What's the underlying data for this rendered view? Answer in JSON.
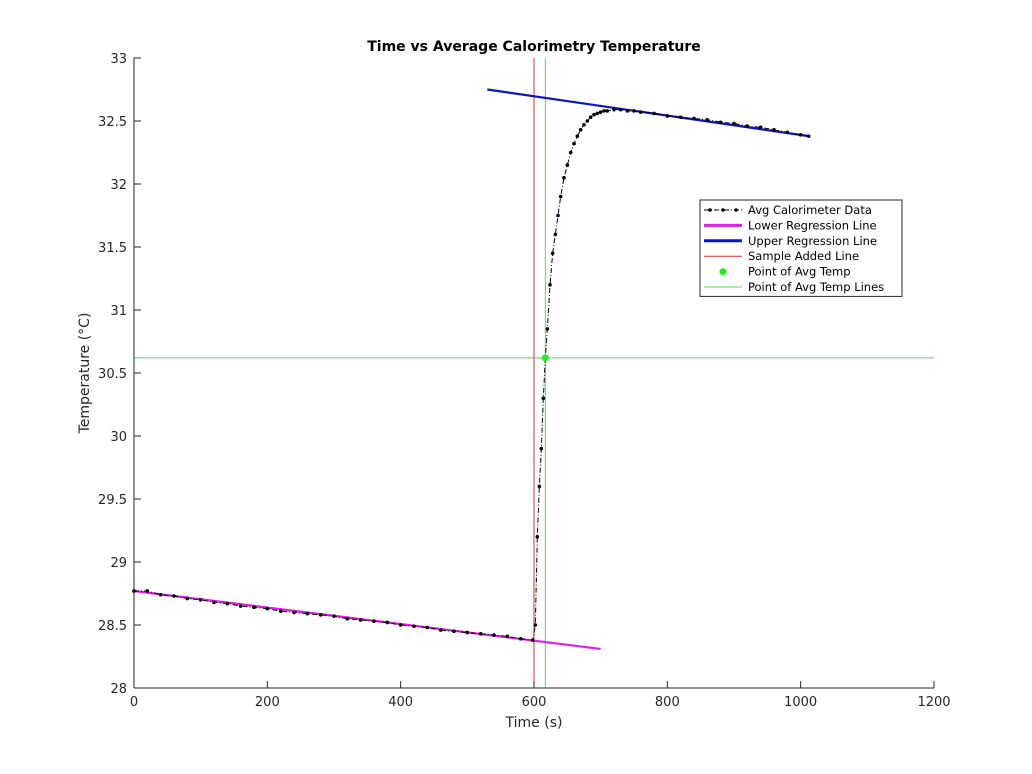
{
  "chart_data": {
    "type": "line",
    "title": "Time vs Average Calorimetry Temperature",
    "xlabel": "Time (s)",
    "ylabel": "Temperature (°C)",
    "xlim": [
      0,
      1200
    ],
    "ylim": [
      28,
      33
    ],
    "xticks": [
      0,
      200,
      400,
      600,
      800,
      1000,
      1200
    ],
    "yticks": [
      28,
      28.5,
      29,
      29.5,
      30,
      30.5,
      31,
      31.5,
      32,
      32.5,
      33
    ],
    "grid": false,
    "legend_position": "upper-right",
    "series": [
      {
        "name": "Avg Calorimeter Data",
        "style": "dash-dot-with-dots",
        "color": "#000000",
        "x": [
          0,
          20,
          40,
          60,
          80,
          100,
          120,
          140,
          160,
          180,
          200,
          220,
          240,
          260,
          280,
          300,
          320,
          340,
          360,
          380,
          400,
          420,
          440,
          460,
          480,
          500,
          520,
          540,
          560,
          580,
          598,
          602,
          605,
          608,
          611,
          614,
          617,
          620,
          624,
          628,
          632,
          636,
          640,
          645,
          650,
          655,
          660,
          665,
          670,
          675,
          680,
          685,
          690,
          695,
          700,
          705,
          710,
          720,
          730,
          740,
          750,
          760,
          780,
          800,
          820,
          840,
          860,
          880,
          900,
          920,
          940,
          960,
          980,
          1000,
          1012
        ],
        "y": [
          28.77,
          28.77,
          28.74,
          28.73,
          28.71,
          28.7,
          28.68,
          28.67,
          28.65,
          28.64,
          28.63,
          28.61,
          28.6,
          28.59,
          28.58,
          28.57,
          28.55,
          28.54,
          28.53,
          28.52,
          28.5,
          28.49,
          28.48,
          28.46,
          28.45,
          28.44,
          28.43,
          28.42,
          28.41,
          28.39,
          28.38,
          28.5,
          29.2,
          29.6,
          29.9,
          30.3,
          30.62,
          30.85,
          31.2,
          31.45,
          31.6,
          31.75,
          31.9,
          32.05,
          32.15,
          32.25,
          32.32,
          32.38,
          32.43,
          32.47,
          32.5,
          32.53,
          32.55,
          32.56,
          32.57,
          32.58,
          32.58,
          32.59,
          32.59,
          32.58,
          32.58,
          32.57,
          32.56,
          32.54,
          32.53,
          32.52,
          32.51,
          32.49,
          32.48,
          32.46,
          32.45,
          32.43,
          32.41,
          32.39,
          32.38
        ]
      },
      {
        "name": "Lower Regression Line",
        "style": "solid",
        "color": "#e11de1",
        "x": [
          0,
          700
        ],
        "y": [
          28.77,
          28.31
        ]
      },
      {
        "name": "Upper Regression Line",
        "style": "solid",
        "color": "#0a14c8",
        "x": [
          530,
          1012
        ],
        "y": [
          32.75,
          32.38
        ]
      },
      {
        "name": "Sample Added Line",
        "style": "solid",
        "color": "#e03030",
        "x": [
          600,
          600
        ],
        "y": [
          28,
          33
        ]
      },
      {
        "name": "Point of Avg Temp",
        "style": "marker",
        "color": "#22ee22",
        "x": [
          617
        ],
        "y": [
          30.62
        ]
      },
      {
        "name": "Point of Avg Temp Lines",
        "style": "solid",
        "color": "#55dd55",
        "segments": [
          {
            "x": [
              617,
              617
            ],
            "y": [
              28,
              33
            ]
          },
          {
            "x": [
              0,
              1200
            ],
            "y": [
              30.62,
              30.62
            ]
          }
        ]
      }
    ]
  }
}
